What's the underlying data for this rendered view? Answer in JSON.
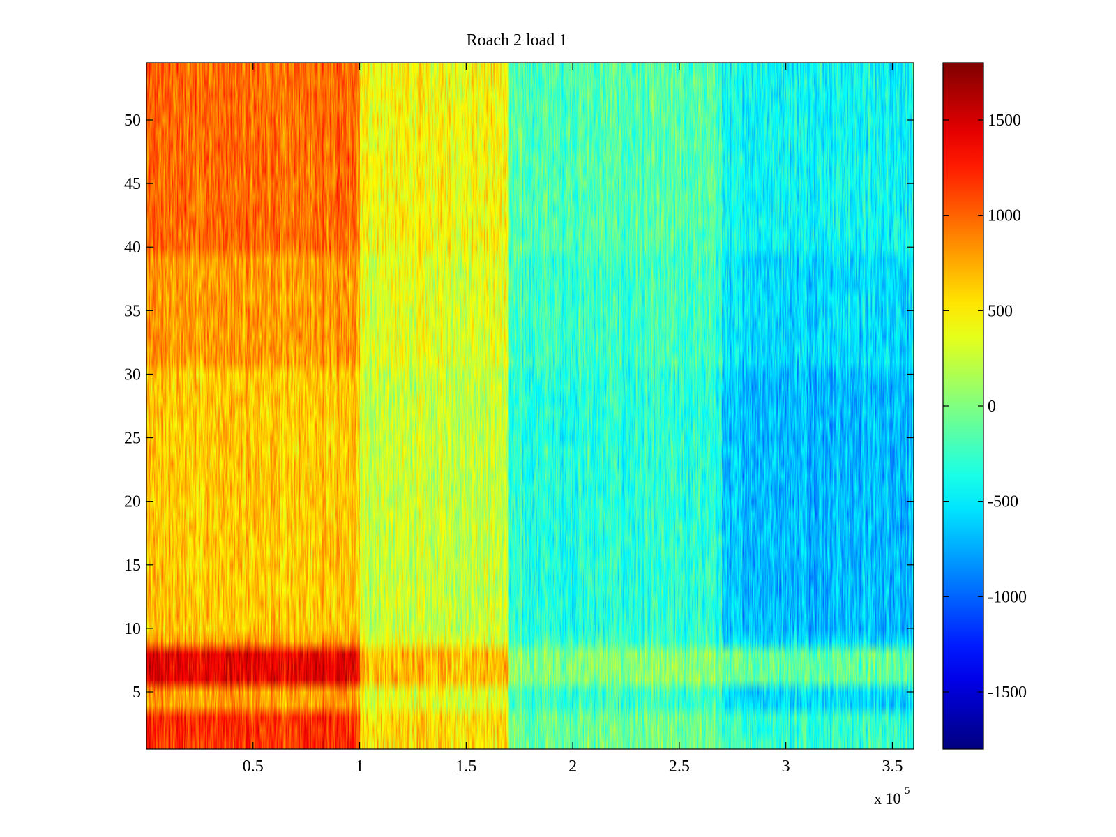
{
  "chart_data": {
    "type": "heatmap",
    "title": "Roach 2 load 1",
    "xlabel": "",
    "ylabel": "",
    "x_multiplier_label": "x 10",
    "x_multiplier_exponent": "5",
    "xlim": [
      0,
      360000
    ],
    "ylim": [
      0.5,
      54.5
    ],
    "x_ticks": [
      50000,
      100000,
      150000,
      200000,
      250000,
      300000,
      350000
    ],
    "x_tick_labels": [
      "0.5",
      "1",
      "1.5",
      "2",
      "2.5",
      "3",
      "3.5"
    ],
    "y_ticks": [
      5,
      10,
      15,
      20,
      25,
      30,
      35,
      40,
      45,
      50
    ],
    "y_tick_labels": [
      "5",
      "10",
      "15",
      "20",
      "25",
      "30",
      "35",
      "40",
      "45",
      "50"
    ],
    "n_rows": 54,
    "colormap": "jet",
    "colorbar": {
      "clim": [
        -1800,
        1800
      ],
      "ticks": [
        -1500,
        -1000,
        -500,
        0,
        500,
        1000,
        1500
      ],
      "tick_labels": [
        "-1500",
        "-1000",
        "-500",
        "0",
        "500",
        "1000",
        "1500"
      ],
      "placement": "right"
    },
    "segments": [
      {
        "x_start": 0,
        "x_end": 100000,
        "base_level": 800
      },
      {
        "x_start": 100000,
        "x_end": 170000,
        "base_level": 350
      },
      {
        "x_start": 170000,
        "x_end": 270000,
        "base_level": -250
      },
      {
        "x_start": 270000,
        "x_end": 360000,
        "base_level": -550
      }
    ],
    "row_offsets": [
      {
        "rows": [
          1,
          3
        ],
        "offset": 350
      },
      {
        "rows": [
          6,
          8
        ],
        "offset": 550
      },
      {
        "rows": [
          10,
          30
        ],
        "offset": -150
      },
      {
        "rows": [
          40,
          54
        ],
        "offset": 150
      }
    ],
    "noise_amplitude": 300,
    "grid": false,
    "legend": "none"
  }
}
